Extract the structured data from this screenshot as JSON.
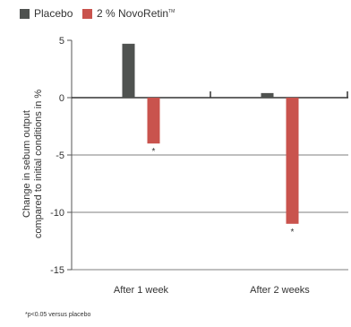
{
  "legend": [
    {
      "label": "Placebo",
      "color": "#4f5250"
    },
    {
      "label": "2 % NovoRetin",
      "sup": "TM",
      "color": "#c9534d"
    }
  ],
  "footnote": "*p<0.05 versus placebo",
  "chart_data": {
    "type": "bar",
    "categories": [
      "After 1 week",
      "After 2 weeks"
    ],
    "series": [
      {
        "name": "Placebo",
        "values": [
          4.7,
          0.4
        ],
        "color": "#4f5250"
      },
      {
        "name": "2 % NovoRetin",
        "values": [
          -4.0,
          -11.0
        ],
        "color": "#c9534d"
      }
    ],
    "annotations": [
      {
        "category": "After 1 week",
        "series": "2 % NovoRetin",
        "text": "*"
      },
      {
        "category": "After 2 weeks",
        "series": "2 % NovoRetin",
        "text": "*"
      }
    ],
    "ylabel_lines": [
      "Change in sebum output",
      "compared to initial conditions in %"
    ],
    "yticks": [
      5,
      0,
      -5,
      -10,
      -15
    ],
    "ylim": [
      -15,
      5
    ],
    "grid": true,
    "legend_position": "top-left"
  }
}
